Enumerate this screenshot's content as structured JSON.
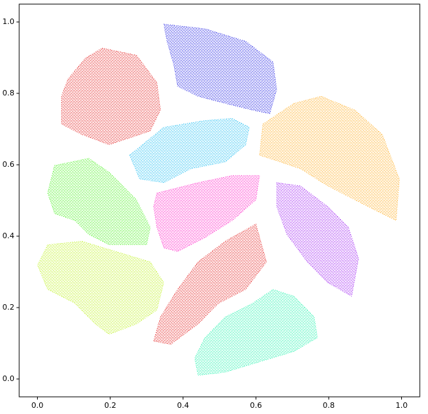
{
  "chart_data": {
    "type": "scatter",
    "xlim": [
      -0.05,
      1.05
    ],
    "ylim": [
      -0.05,
      1.05
    ],
    "xticks": [
      {
        "value": 0,
        "label": "0.0"
      },
      0.2,
      0.4,
      0.6,
      0.8,
      {
        "value": 1,
        "label": "1.0"
      }
    ],
    "yticks": [
      {
        "value": 0,
        "label": "0.0"
      },
      0.2,
      0.4,
      0.6,
      0.8,
      {
        "value": 1,
        "label": "1.0"
      }
    ],
    "series": [
      {
        "color": "#0000e0",
        "x": [
          0.347,
          0.46,
          0.572,
          0.647,
          0.657,
          0.638,
          0.591,
          0.516,
          0.441,
          0.385,
          0.375,
          0.356
        ],
        "y": [
          0.994,
          0.981,
          0.946,
          0.888,
          0.811,
          0.743,
          0.753,
          0.772,
          0.792,
          0.82,
          0.878,
          0.946
        ]
      },
      {
        "color": "#e00000",
        "x": [
          0.178,
          0.272,
          0.328,
          0.338,
          0.31,
          0.197,
          0.122,
          0.066,
          0.066,
          0.084,
          0.131
        ],
        "y": [
          0.927,
          0.907,
          0.83,
          0.753,
          0.695,
          0.656,
          0.685,
          0.714,
          0.792,
          0.84,
          0.898
        ]
      },
      {
        "color": "#00b4f0",
        "x": [
          0.253,
          0.347,
          0.46,
          0.535,
          0.582,
          0.572,
          0.516,
          0.422,
          0.347,
          0.281
        ],
        "y": [
          0.627,
          0.705,
          0.724,
          0.73,
          0.705,
          0.656,
          0.608,
          0.589,
          0.55,
          0.56
        ]
      },
      {
        "color": "#ffa000",
        "x": [
          0.619,
          0.704,
          0.779,
          0.872,
          0.947,
          0.994,
          0.985,
          0.947,
          0.891,
          0.797,
          0.722,
          0.666,
          0.61
        ],
        "y": [
          0.714,
          0.772,
          0.792,
          0.753,
          0.685,
          0.56,
          0.444,
          0.463,
          0.492,
          0.541,
          0.589,
          0.608,
          0.627
        ]
      },
      {
        "color": "#30f000",
        "x": [
          0.047,
          0.141,
          0.197,
          0.272,
          0.31,
          0.3,
          0.197,
          0.141,
          0.103,
          0.047,
          0.028
        ],
        "y": [
          0.598,
          0.618,
          0.579,
          0.502,
          0.425,
          0.376,
          0.376,
          0.405,
          0.444,
          0.463,
          0.521
        ]
      },
      {
        "color": "#ff00c0",
        "x": [
          0.328,
          0.441,
          0.535,
          0.61,
          0.6,
          0.535,
          0.46,
          0.385,
          0.347,
          0.328,
          0.319
        ],
        "y": [
          0.521,
          0.55,
          0.57,
          0.57,
          0.502,
          0.444,
          0.396,
          0.357,
          0.367,
          0.425,
          0.483
        ]
      },
      {
        "color": "#9000f0",
        "x": [
          0.657,
          0.722,
          0.797,
          0.854,
          0.882,
          0.863,
          0.797,
          0.741,
          0.685,
          0.657
        ],
        "y": [
          0.55,
          0.541,
          0.483,
          0.425,
          0.338,
          0.232,
          0.27,
          0.328,
          0.405,
          0.483
        ]
      },
      {
        "color": "#b4f000",
        "x": [
          0.028,
          0.122,
          0.216,
          0.31,
          0.347,
          0.328,
          0.272,
          0.197,
          0.159,
          0.103,
          0.028,
          0.0
        ],
        "y": [
          0.376,
          0.386,
          0.357,
          0.328,
          0.27,
          0.193,
          0.154,
          0.125,
          0.154,
          0.212,
          0.251,
          0.319
        ]
      },
      {
        "color": "#e00000",
        "x": [
          0.6,
          0.629,
          0.572,
          0.497,
          0.441,
          0.366,
          0.319,
          0.338,
          0.385,
          0.441,
          0.516
        ],
        "y": [
          0.434,
          0.328,
          0.251,
          0.212,
          0.154,
          0.097,
          0.106,
          0.174,
          0.251,
          0.328,
          0.386
        ]
      },
      {
        "color": "#00f0a0",
        "x": [
          0.647,
          0.704,
          0.76,
          0.769,
          0.704,
          0.61,
          0.516,
          0.441,
          0.432,
          0.46,
          0.516,
          0.591
        ],
        "y": [
          0.251,
          0.232,
          0.174,
          0.116,
          0.077,
          0.048,
          0.019,
          0.01,
          0.058,
          0.116,
          0.174,
          0.212
        ]
      }
    ]
  }
}
